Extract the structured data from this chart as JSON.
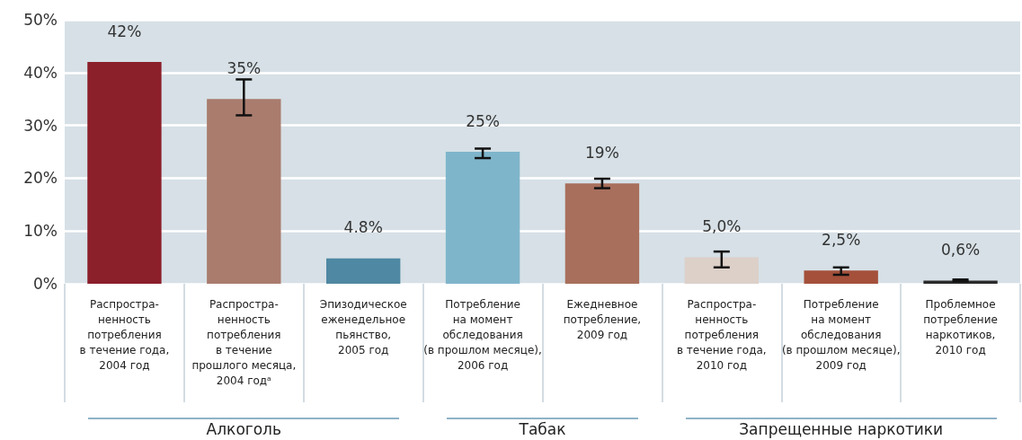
{
  "chart_data": {
    "type": "bar",
    "categories": [
      "Распростра-\nненность\nпотребления\nв течение года,\n2004 год",
      "Распростра-\nненность\nпотребления\nв течение\nпрошлого месяца,\n2004 годᵃ",
      "Эпизодическое\nеженедельное\nпьянство,\n2005 год",
      "Потребление\nна момент\nобследования\n(в прошлом месяце),\n2006 год",
      "Ежедневное\nпотребление,\n2009 год",
      "Распростра-\nненность\nпотребления\nв течение года,\n2010 год",
      "Потребление\nна момент\nобследования\n(в прошлом месяце),\n2009 год",
      "Проблемное\nпотребление\nнаркотиков,\n2010 год"
    ],
    "values": [
      42,
      35,
      4.8,
      25,
      19,
      5.0,
      2.5,
      0.6
    ],
    "colors": [
      "#8b1f2a",
      "#a97c6e",
      "#4f88a2",
      "#7fb5cb",
      "#a86f5c",
      "#dcd0c9",
      "#a4503b",
      "#2b2b2b"
    ],
    "value_labels": [
      "42%",
      "35%",
      "4.8%",
      "25%",
      "19%",
      "5,0%",
      "2,5%",
      "0,6%"
    ],
    "errors": [
      null,
      [
        31.9,
        38.7
      ],
      null,
      [
        23.8,
        25.6
      ],
      [
        18.1,
        19.9
      ],
      [
        3.1,
        6.1
      ],
      [
        1.7,
        3.1
      ],
      [
        0.5,
        0.8
      ]
    ],
    "ylim": [
      0,
      50
    ],
    "yticks": [
      {
        "value": 0,
        "label": "0%"
      },
      {
        "value": 10,
        "label": "10%"
      },
      {
        "value": 20,
        "label": "20%"
      },
      {
        "value": 30,
        "label": "30%"
      },
      {
        "value": 40,
        "label": "40%"
      },
      {
        "value": 50,
        "label": "50%"
      }
    ],
    "grid": "y",
    "annotations": [
      "Алкоголь",
      "Табак",
      "Запрещенные наркотики"
    ]
  }
}
